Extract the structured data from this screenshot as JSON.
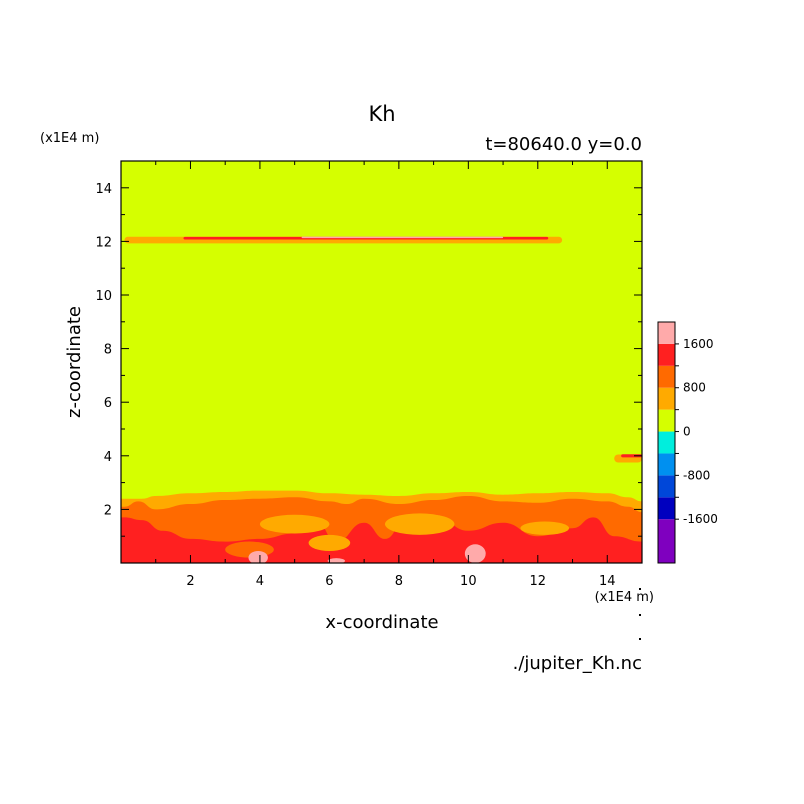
{
  "chart_data": {
    "type": "heatmap",
    "title": "Kh",
    "subtitle": "t=80640.0 y=0.0",
    "xlabel": "x-coordinate",
    "ylabel": "z-coordinate",
    "x_unit": "(x1E4 m)",
    "y_unit": "(x1E4 m)",
    "xlim": [
      0,
      15
    ],
    "ylim": [
      0,
      15
    ],
    "x_ticks": [
      "2",
      "4",
      "6",
      "8",
      "10",
      "12",
      "14"
    ],
    "y_ticks": [
      "2",
      "4",
      "6",
      "8",
      "10",
      "12",
      "14"
    ],
    "footer": "./jupiter_Kh.nc",
    "colorbar": {
      "levels": [
        {
          "min": -2400,
          "max": -1600,
          "color": "#7f00bf"
        },
        {
          "min": -1600,
          "max": -1200,
          "color": "#0000bf"
        },
        {
          "min": -1200,
          "max": -800,
          "color": "#0047d9"
        },
        {
          "min": -800,
          "max": -400,
          "color": "#0090f0"
        },
        {
          "min": -400,
          "max": 0,
          "color": "#00eedd"
        },
        {
          "min": 0,
          "max": 400,
          "color": "#d5ff00"
        },
        {
          "min": 400,
          "max": 800,
          "color": "#ffaa00"
        },
        {
          "min": 800,
          "max": 1200,
          "color": "#ff6a00"
        },
        {
          "min": 1200,
          "max": 1600,
          "color": "#ff2020"
        },
        {
          "min": 1600,
          "max": 2000,
          "color": "#ffaaaa"
        }
      ],
      "tick_labels": [
        "1600",
        "800",
        "0",
        "-800",
        "-1600"
      ]
    },
    "background_value_color": "#d5ff00",
    "regions": [
      {
        "level": "orange",
        "x": [
          0.2,
          0.6,
          1.0,
          2.0,
          3.0,
          4.0,
          5.0,
          6.0,
          7.0,
          8.0,
          9.0,
          10.0,
          11.0,
          12.0,
          13.0,
          14.0,
          14.6,
          15.0
        ],
        "z_top": [
          2.4,
          2.4,
          2.5,
          2.6,
          2.65,
          2.7,
          2.7,
          2.6,
          2.55,
          2.5,
          2.6,
          2.65,
          2.55,
          2.6,
          2.65,
          2.6,
          2.45,
          2.3
        ]
      },
      {
        "level": "dark-orange",
        "x": [
          0.1,
          0.5,
          1.0,
          2.0,
          3.0,
          4.0,
          5.0,
          6.0,
          6.5,
          7.0,
          8.0,
          9.0,
          10.0,
          11.0,
          12.0,
          13.0,
          14.0,
          14.6,
          15.0
        ],
        "z_top": [
          2.1,
          2.3,
          2.0,
          2.2,
          2.35,
          2.4,
          2.45,
          2.3,
          2.2,
          2.4,
          2.2,
          2.35,
          2.5,
          2.3,
          2.25,
          2.4,
          2.3,
          2.1,
          1.9
        ]
      },
      {
        "level": "red",
        "x": [
          0.1,
          0.6,
          1.2,
          2.0,
          3.0,
          4.0,
          5.0,
          5.6,
          6.2,
          7.0,
          7.6,
          8.2,
          9.0,
          10.0,
          11.0,
          12.0,
          13.0,
          13.6,
          14.2,
          15.0
        ],
        "z_top": [
          1.7,
          1.6,
          1.2,
          0.9,
          0.8,
          0.9,
          1.1,
          1.6,
          0.8,
          1.5,
          0.9,
          1.6,
          1.8,
          1.2,
          1.5,
          1.0,
          1.3,
          1.7,
          1.0,
          0.8
        ]
      }
    ],
    "bands": [
      {
        "level": "orange",
        "z_center": 12.05,
        "x_start": 0.1,
        "x_end": 12.7,
        "thickness": 0.25
      },
      {
        "level": "red",
        "z_center": 12.12,
        "x_start": 1.8,
        "x_end": 12.3,
        "thickness": 0.1
      },
      {
        "level": "pink",
        "z_center": 12.15,
        "x_start": 5.2,
        "x_end": 11.0,
        "thickness": 0.05
      },
      {
        "level": "orange",
        "z_center": 3.9,
        "x_start": 14.2,
        "x_end": 15.0,
        "thickness": 0.3
      },
      {
        "level": "red",
        "z_center": 4.0,
        "x_start": 14.4,
        "x_end": 15.0,
        "thickness": 0.12
      }
    ],
    "blobs": [
      {
        "level": "orange",
        "x": 5.0,
        "z": 1.45,
        "rx": 1.0,
        "rz": 0.35
      },
      {
        "level": "orange",
        "x": 8.6,
        "z": 1.45,
        "rx": 1.0,
        "rz": 0.4
      },
      {
        "level": "orange",
        "x": 6.0,
        "z": 0.75,
        "rx": 0.6,
        "rz": 0.3
      },
      {
        "level": "orange",
        "x": 12.2,
        "z": 1.3,
        "rx": 0.7,
        "rz": 0.25
      },
      {
        "level": "dark-orange",
        "x": 3.7,
        "z": 0.5,
        "rx": 0.7,
        "rz": 0.3
      },
      {
        "level": "pink",
        "x": 3.95,
        "z": 0.2,
        "rx": 0.28,
        "rz": 0.25
      },
      {
        "level": "pink",
        "x": 10.2,
        "z": 0.35,
        "rx": 0.3,
        "rz": 0.35
      },
      {
        "level": "pink",
        "x": 6.2,
        "z": 0.08,
        "rx": 0.25,
        "rz": 0.1
      }
    ]
  }
}
